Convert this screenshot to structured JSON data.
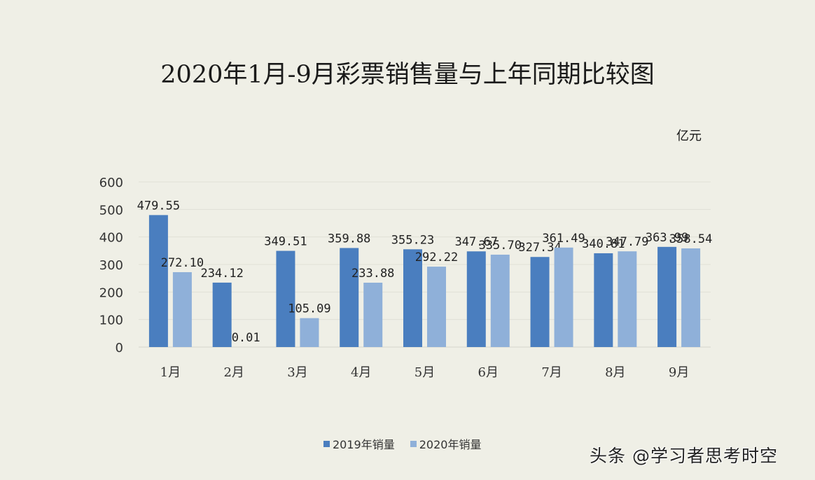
{
  "chart_data": {
    "type": "bar",
    "title": "2020年1月-9月彩票销售量与上年同期比较图",
    "unit": "亿元",
    "xlabel": "",
    "ylabel": "亿元",
    "ylim": [
      0,
      600
    ],
    "yticks": [
      0,
      100,
      200,
      300,
      400,
      500,
      600
    ],
    "grid": true,
    "legend_position": "bottom",
    "categories": [
      "1月",
      "2月",
      "3月",
      "4月",
      "5月",
      "6月",
      "7月",
      "8月",
      "9月"
    ],
    "series": [
      {
        "name": "2019年销量",
        "color": "#4a7ebf",
        "values": [
          479.55,
          234.12,
          349.51,
          359.88,
          355.23,
          347.67,
          327.34,
          340.81,
          363.99
        ]
      },
      {
        "name": "2020年销量",
        "color": "#8fb0d9",
        "values": [
          272.1,
          0.01,
          105.09,
          233.88,
          292.22,
          335.7,
          361.49,
          347.79,
          358.54
        ]
      }
    ]
  },
  "watermark": "头条 @学习者思考时空"
}
